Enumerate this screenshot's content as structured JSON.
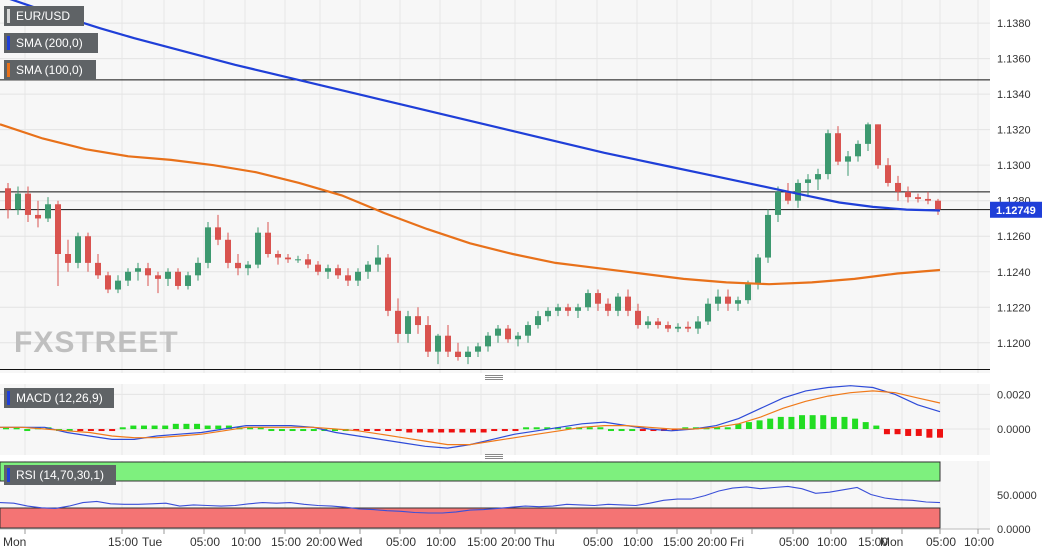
{
  "legend": {
    "symbol": "EUR/USD",
    "sma200": "SMA (200,0)",
    "sma100": "SMA (100,0)",
    "macd": "MACD (12,26,9)",
    "rsi": "RSI (14,70,30,1)"
  },
  "watermark": "FXSTREET",
  "colors": {
    "up": "#3d9970",
    "down": "#d9534f",
    "sma200": "#1f3fd8",
    "sma100": "#e8711a",
    "macd_line": "#2e4bd8",
    "signal_line": "#f07a1a",
    "hist_up": "#22dd22",
    "hist_down": "#ee1111",
    "rsi_line": "#3a4fd8",
    "overbought": "#7ef07e",
    "oversold": "#f47474",
    "price_tag": "#1f3fd8"
  },
  "chart_data": [
    {
      "type": "candlestick",
      "title": "EUR/USD",
      "ylim": [
        1.1183,
        1.1393
      ],
      "y_ticks": [
        "1.1200",
        "1.1220",
        "1.1240",
        "1.1260",
        "1.1280",
        "1.1300",
        "1.1320",
        "1.1340",
        "1.1360",
        "1.1380"
      ],
      "last_price": "1.12749",
      "horizontal_lines": [
        1.1348,
        1.1285,
        1.1275,
        1.1185
      ],
      "x_ticks": [
        "Mon",
        "15:00",
        "Tue",
        "05:00",
        "10:00",
        "15:00",
        "20:00",
        "Wed",
        "05:00",
        "10:00",
        "15:00",
        "20:00",
        "Thu",
        "05:00",
        "10:00",
        "15:00",
        "20:00",
        "Fri",
        "05:00",
        "10:00",
        "15:00",
        "Mon",
        "05:00",
        "10:00"
      ],
      "candles": [
        [
          1.1287,
          1.129,
          1.127,
          1.1275
        ],
        [
          1.1275,
          1.1288,
          1.1272,
          1.1284
        ],
        [
          1.1284,
          1.1288,
          1.1268,
          1.1272
        ],
        [
          1.1272,
          1.128,
          1.1265,
          1.127
        ],
        [
          1.127,
          1.1282,
          1.1268,
          1.1278
        ],
        [
          1.1278,
          1.128,
          1.1232,
          1.125
        ],
        [
          1.125,
          1.1258,
          1.124,
          1.1245
        ],
        [
          1.1245,
          1.1262,
          1.1242,
          1.126
        ],
        [
          1.126,
          1.1262,
          1.124,
          1.1245
        ],
        [
          1.1245,
          1.125,
          1.1236,
          1.1238
        ],
        [
          1.1238,
          1.124,
          1.1228,
          1.123
        ],
        [
          1.123,
          1.1238,
          1.1228,
          1.1235
        ],
        [
          1.1235,
          1.1242,
          1.1232,
          1.124
        ],
        [
          1.124,
          1.1245,
          1.1235,
          1.1242
        ],
        [
          1.1242,
          1.1245,
          1.1232,
          1.1238
        ],
        [
          1.1238,
          1.124,
          1.1228,
          1.1236
        ],
        [
          1.1236,
          1.1242,
          1.1232,
          1.124
        ],
        [
          1.124,
          1.1242,
          1.123,
          1.1232
        ],
        [
          1.1232,
          1.124,
          1.123,
          1.1238
        ],
        [
          1.1238,
          1.1248,
          1.1235,
          1.1245
        ],
        [
          1.1245,
          1.1268,
          1.1242,
          1.1265
        ],
        [
          1.1265,
          1.1272,
          1.1255,
          1.1258
        ],
        [
          1.1258,
          1.1262,
          1.1242,
          1.1245
        ],
        [
          1.1245,
          1.125,
          1.1238,
          1.1242
        ],
        [
          1.1242,
          1.1246,
          1.1238,
          1.1244
        ],
        [
          1.1244,
          1.1265,
          1.1242,
          1.1262
        ],
        [
          1.1262,
          1.1268,
          1.1248,
          1.125
        ],
        [
          1.125,
          1.1252,
          1.1244,
          1.1248
        ],
        [
          1.1248,
          1.125,
          1.1245,
          1.1247
        ],
        [
          1.1247,
          1.1249,
          1.1245,
          1.1247
        ],
        [
          1.1247,
          1.125,
          1.1242,
          1.1244
        ],
        [
          1.1244,
          1.1246,
          1.1238,
          1.124
        ],
        [
          1.124,
          1.1244,
          1.1236,
          1.1242
        ],
        [
          1.1242,
          1.1244,
          1.1236,
          1.1238
        ],
        [
          1.1238,
          1.1242,
          1.1232,
          1.1235
        ],
        [
          1.1235,
          1.1242,
          1.1232,
          1.124
        ],
        [
          1.124,
          1.1246,
          1.1236,
          1.1244
        ],
        [
          1.1244,
          1.1255,
          1.124,
          1.1248
        ],
        [
          1.1248,
          1.125,
          1.1215,
          1.1218
        ],
        [
          1.1218,
          1.1225,
          1.12,
          1.1205
        ],
        [
          1.1205,
          1.1218,
          1.12,
          1.1215
        ],
        [
          1.1215,
          1.122,
          1.1205,
          1.121
        ],
        [
          1.121,
          1.1215,
          1.1192,
          1.1195
        ],
        [
          1.1195,
          1.1205,
          1.1188,
          1.1204
        ],
        [
          1.1204,
          1.121,
          1.1192,
          1.1195
        ],
        [
          1.1195,
          1.12,
          1.119,
          1.1192
        ],
        [
          1.1192,
          1.1198,
          1.1188,
          1.1195
        ],
        [
          1.1195,
          1.12,
          1.1192,
          1.1198
        ],
        [
          1.1198,
          1.1206,
          1.1195,
          1.1204
        ],
        [
          1.1204,
          1.121,
          1.12,
          1.1208
        ],
        [
          1.1208,
          1.121,
          1.12,
          1.1202
        ],
        [
          1.1202,
          1.1206,
          1.1198,
          1.1204
        ],
        [
          1.1204,
          1.1212,
          1.12,
          1.121
        ],
        [
          1.121,
          1.1218,
          1.1208,
          1.1215
        ],
        [
          1.1215,
          1.122,
          1.1212,
          1.1218
        ],
        [
          1.1218,
          1.1222,
          1.1215,
          1.122
        ],
        [
          1.122,
          1.1222,
          1.1215,
          1.1218
        ],
        [
          1.1218,
          1.1222,
          1.1214,
          1.122
        ],
        [
          1.122,
          1.123,
          1.1218,
          1.1228
        ],
        [
          1.1228,
          1.123,
          1.1218,
          1.1222
        ],
        [
          1.1222,
          1.1225,
          1.1215,
          1.1218
        ],
        [
          1.1218,
          1.1228,
          1.1215,
          1.1226
        ],
        [
          1.1226,
          1.123,
          1.1215,
          1.1218
        ],
        [
          1.1218,
          1.1222,
          1.1208,
          1.121
        ],
        [
          1.121,
          1.1215,
          1.1208,
          1.1212
        ],
        [
          1.1212,
          1.1214,
          1.1208,
          1.121
        ],
        [
          1.121,
          1.1212,
          1.1206,
          1.1208
        ],
        [
          1.1208,
          1.1211,
          1.1206,
          1.1209
        ],
        [
          1.1209,
          1.1212,
          1.1206,
          1.1208
        ],
        [
          1.1208,
          1.1215,
          1.1205,
          1.1212
        ],
        [
          1.1212,
          1.1225,
          1.121,
          1.1222
        ],
        [
          1.1222,
          1.123,
          1.1218,
          1.1226
        ],
        [
          1.1226,
          1.123,
          1.1218,
          1.1222
        ],
        [
          1.1222,
          1.1226,
          1.1218,
          1.1224
        ],
        [
          1.1224,
          1.1235,
          1.1222,
          1.1233
        ],
        [
          1.1233,
          1.125,
          1.123,
          1.1248
        ],
        [
          1.1248,
          1.1275,
          1.1245,
          1.1272
        ],
        [
          1.1272,
          1.1288,
          1.1268,
          1.1285
        ],
        [
          1.1285,
          1.129,
          1.1278,
          1.128
        ],
        [
          1.128,
          1.1292,
          1.1276,
          1.129
        ],
        [
          1.129,
          1.1295,
          1.1282,
          1.1292
        ],
        [
          1.1292,
          1.1298,
          1.1286,
          1.1295
        ],
        [
          1.1295,
          1.132,
          1.1292,
          1.1318
        ],
        [
          1.1318,
          1.1322,
          1.13,
          1.1302
        ],
        [
          1.1302,
          1.1308,
          1.1294,
          1.1305
        ],
        [
          1.1305,
          1.1314,
          1.1302,
          1.1312
        ],
        [
          1.1312,
          1.1324,
          1.1308,
          1.1323
        ],
        [
          1.1323,
          1.1323,
          1.1298,
          1.13
        ],
        [
          1.13,
          1.1304,
          1.1288,
          1.129
        ],
        [
          1.129,
          1.1294,
          1.128,
          1.1285
        ],
        [
          1.1285,
          1.1288,
          1.1279,
          1.1282
        ],
        [
          1.1282,
          1.1284,
          1.1279,
          1.1281
        ],
        [
          1.1281,
          1.1285,
          1.1278,
          1.128
        ],
        [
          1.128,
          1.1281,
          1.1272,
          1.1275
        ]
      ],
      "series": [
        {
          "name": "SMA (200,0)",
          "values": [
            1.13955,
            1.1389,
            1.1383,
            1.1377,
            1.13715,
            1.13665,
            1.13615,
            1.13565,
            1.1352,
            1.13475,
            1.1343,
            1.13385,
            1.1334,
            1.13295,
            1.1325,
            1.13205,
            1.1316,
            1.13115,
            1.1307,
            1.1303,
            1.1299,
            1.1295,
            1.1291,
            1.1287,
            1.1283,
            1.1279,
            1.12765,
            1.1275,
            1.12745
          ]
        },
        {
          "name": "SMA (100,0)",
          "values": [
            1.1323,
            1.1315,
            1.1309,
            1.1305,
            1.1303,
            1.13,
            1.1296,
            1.129,
            1.1283,
            1.1273,
            1.1264,
            1.1256,
            1.125,
            1.1245,
            1.1242,
            1.1239,
            1.1236,
            1.1234,
            1.1233,
            1.1234,
            1.1236,
            1.1239,
            1.1241
          ]
        }
      ]
    },
    {
      "type": "line",
      "title": "MACD (12,26,9)",
      "ylim": [
        -0.0015,
        0.0026
      ],
      "y_ticks": [
        "0.0020",
        "0.0000"
      ],
      "histogram": [
        0.0001,
        0.0001,
        0.0,
        0.0001,
        0.0001,
        0.0,
        0.0,
        -0.0001,
        -0.0001,
        -0.0001,
        -0.0001,
        0.0001,
        0.0002,
        0.0002,
        0.0002,
        0.0002,
        0.0003,
        0.0003,
        0.0003,
        0.0002,
        0.0002,
        0.0002,
        0.0001,
        0.0001,
        0.0001,
        0.0,
        0.0,
        0.0,
        0.0,
        0.0,
        0.0,
        0.0,
        0.0,
        -0.0001,
        -0.0001,
        -0.0001,
        -0.0001,
        -0.0001,
        -0.0002,
        -0.0002,
        -0.0002,
        -0.0002,
        -0.0002,
        -0.0002,
        -0.0002,
        -0.0002,
        -0.0001,
        -0.0001,
        -0.0001,
        0.0001,
        0.0001,
        0.0001,
        0.0001,
        0.0001,
        0.0001,
        0.0001,
        0.0001,
        0.0,
        0.0,
        0.0,
        -0.0001,
        -0.0001,
        -0.0001,
        -0.0001,
        0.0001,
        0.0001,
        0.0001,
        0.0001,
        0.0001,
        0.0003,
        0.0004,
        0.0005,
        0.0006,
        0.0007,
        0.0007,
        0.0008,
        0.0008,
        0.0008,
        0.0007,
        0.0007,
        0.0006,
        0.0004,
        0.0002,
        -0.0003,
        -0.0003,
        -0.0004,
        -0.0004,
        -0.0005,
        -0.0005
      ],
      "series": [
        {
          "name": "MACD",
          "values": [
            0.0001,
            0.0001,
            0.0001,
            -0.0002,
            -0.0004,
            -0.0006,
            -0.0006,
            -0.0004,
            -0.0003,
            -0.0002,
            0.0,
            0.0002,
            0.0002,
            0.0002,
            0.0001,
            -0.0002,
            -0.0004,
            -0.0006,
            -0.0008,
            -0.001,
            -0.0011,
            -0.0009,
            -0.0006,
            -0.0003,
            -0.0001,
            0.0001,
            0.0003,
            0.0004,
            0.0002,
            0.0,
            -0.0001,
            0.0,
            0.0002,
            0.0006,
            0.0012,
            0.0018,
            0.0022,
            0.0024,
            0.0025,
            0.0024,
            0.002,
            0.0014,
            0.001
          ]
        },
        {
          "name": "Signal",
          "values": [
            0.0001,
            0.0001,
            0.0,
            -0.0001,
            -0.0002,
            -0.0004,
            -0.0005,
            -0.0005,
            -0.0004,
            -0.0003,
            -0.0001,
            0.0001,
            0.0001,
            0.0001,
            0.0001,
            0.0,
            -0.0001,
            -0.0003,
            -0.0005,
            -0.0007,
            -0.0009,
            -0.0009,
            -0.0007,
            -0.0005,
            -0.0003,
            -0.0001,
            0.0001,
            0.0002,
            0.0002,
            0.0001,
            0.0,
            0.0,
            0.0001,
            0.0003,
            0.0007,
            0.0012,
            0.0016,
            0.0019,
            0.0021,
            0.0022,
            0.0021,
            0.0018,
            0.0015
          ]
        }
      ]
    },
    {
      "type": "line",
      "title": "RSI (14,70,30,1)",
      "ylim": [
        0,
        100
      ],
      "y_ticks": [
        "50.0000",
        "0.0000"
      ],
      "levels": [
        70,
        30
      ],
      "series": [
        {
          "name": "RSI",
          "values": [
            50,
            49,
            44,
            41,
            40,
            44,
            50,
            52,
            48,
            47,
            47,
            48,
            49,
            44,
            46,
            45,
            44,
            45,
            48,
            50,
            49,
            50,
            47,
            45,
            44,
            42,
            39,
            38,
            36,
            35,
            33,
            32,
            32,
            34,
            37,
            38,
            40,
            42,
            44,
            43,
            44,
            47,
            46,
            45,
            47,
            46,
            45,
            49,
            54,
            56,
            56,
            62,
            70,
            75,
            77,
            74,
            76,
            78,
            74,
            66,
            68,
            72,
            76,
            64,
            58,
            55,
            54,
            51,
            50
          ]
        }
      ]
    }
  ]
}
